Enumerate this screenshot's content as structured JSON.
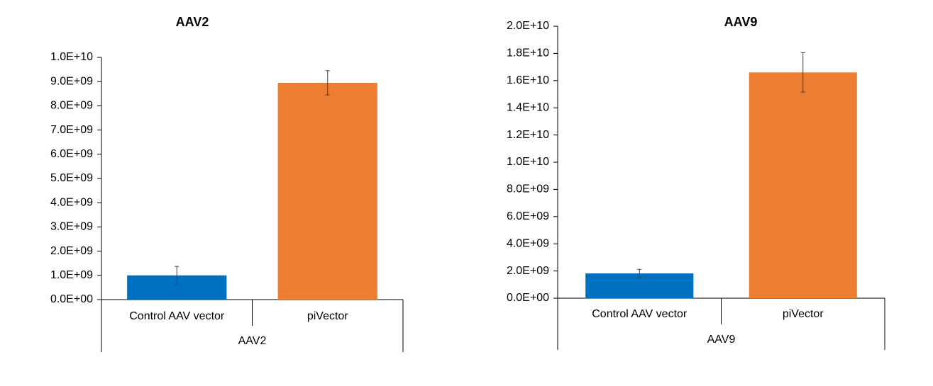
{
  "chart_data": [
    {
      "type": "bar",
      "title": "AAV2",
      "group_label": "AAV2",
      "categories": [
        "Control AAV vector",
        "piVector"
      ],
      "values": [
        1000000000,
        8950000000
      ],
      "errors": [
        370000000,
        500000000
      ],
      "colors": [
        "#0070c0",
        "#ed7d31"
      ],
      "ylim": [
        0,
        10000000000
      ],
      "yticks": [
        {
          "value": 0,
          "label": "0.0E+00"
        },
        {
          "value": 1000000000,
          "label": "1.0E+09"
        },
        {
          "value": 2000000000,
          "label": "2.0E+09"
        },
        {
          "value": 3000000000,
          "label": "3.0E+09"
        },
        {
          "value": 4000000000,
          "label": "4.0E+09"
        },
        {
          "value": 5000000000,
          "label": "5.0E+09"
        },
        {
          "value": 6000000000,
          "label": "6.0E+09"
        },
        {
          "value": 7000000000,
          "label": "7.0E+09"
        },
        {
          "value": 8000000000,
          "label": "8.0E+09"
        },
        {
          "value": 9000000000,
          "label": "9.0E+09"
        },
        {
          "value": 10000000000,
          "label": "1.0E+10"
        }
      ]
    },
    {
      "type": "bar",
      "title": "AAV9",
      "group_label": "AAV9",
      "categories": [
        "Control AAV vector",
        "piVector"
      ],
      "values": [
        1820000000,
        16600000000
      ],
      "errors": [
        300000000,
        1450000000
      ],
      "colors": [
        "#0070c0",
        "#ed7d31"
      ],
      "ylim": [
        0,
        20000000000
      ],
      "yticks": [
        {
          "value": 0,
          "label": "0.0E+00"
        },
        {
          "value": 2000000000,
          "label": "2.0E+09"
        },
        {
          "value": 4000000000,
          "label": "4.0E+09"
        },
        {
          "value": 6000000000,
          "label": "6.0E+09"
        },
        {
          "value": 8000000000,
          "label": "8.0E+09"
        },
        {
          "value": 10000000000,
          "label": "1.0E+10"
        },
        {
          "value": 12000000000,
          "label": "1.2E+10"
        },
        {
          "value": 14000000000,
          "label": "1.4E+10"
        },
        {
          "value": 16000000000,
          "label": "1.6E+10"
        },
        {
          "value": 18000000000,
          "label": "1.8E+10"
        },
        {
          "value": 20000000000,
          "label": "2.0E+10"
        }
      ]
    }
  ]
}
